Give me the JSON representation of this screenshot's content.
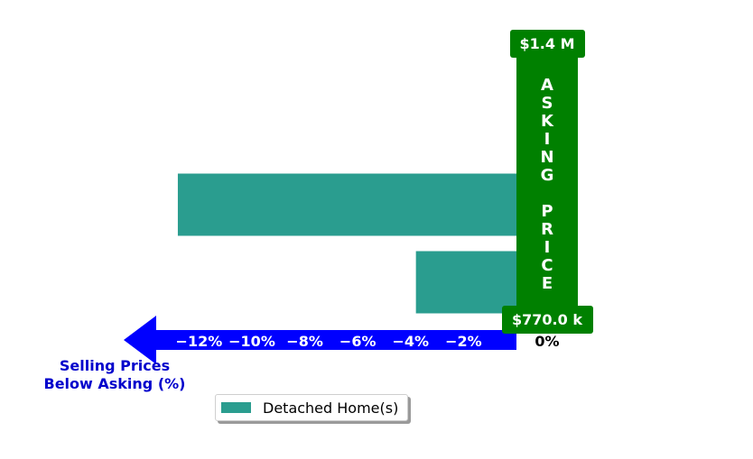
{
  "chart_data": {
    "type": "bar",
    "orientation": "horizontal",
    "categories": [
      "",
      "",
      ""
    ],
    "series": [
      {
        "name": "Detached Home(s)",
        "values": [
          1.0,
          -12.8,
          -3.8
        ]
      }
    ],
    "xlim": [
      -16.5,
      2.0
    ],
    "x_ticks": [
      -12,
      -10,
      -8,
      -6,
      -4,
      -2,
      0
    ],
    "x_tick_labels": [
      "−12%",
      "−10%",
      "−8%",
      "−6%",
      "−4%",
      "−2%",
      "0%"
    ],
    "xlabel": "Selling Prices\nBelow Asking (%)",
    "asking_price_label": "ASKING PRICE",
    "top_price_label": "$1.4 M",
    "bottom_price_label": "$770.0 k",
    "legend": {
      "entries": [
        "Detached Home(s)"
      ],
      "placement": "bottom-center"
    },
    "colors": {
      "bar": "#2a9d8f",
      "asking_band": "#008000",
      "axis_arrow": "#0000ff",
      "xlabel": "#0000cc"
    },
    "grid": false
  }
}
